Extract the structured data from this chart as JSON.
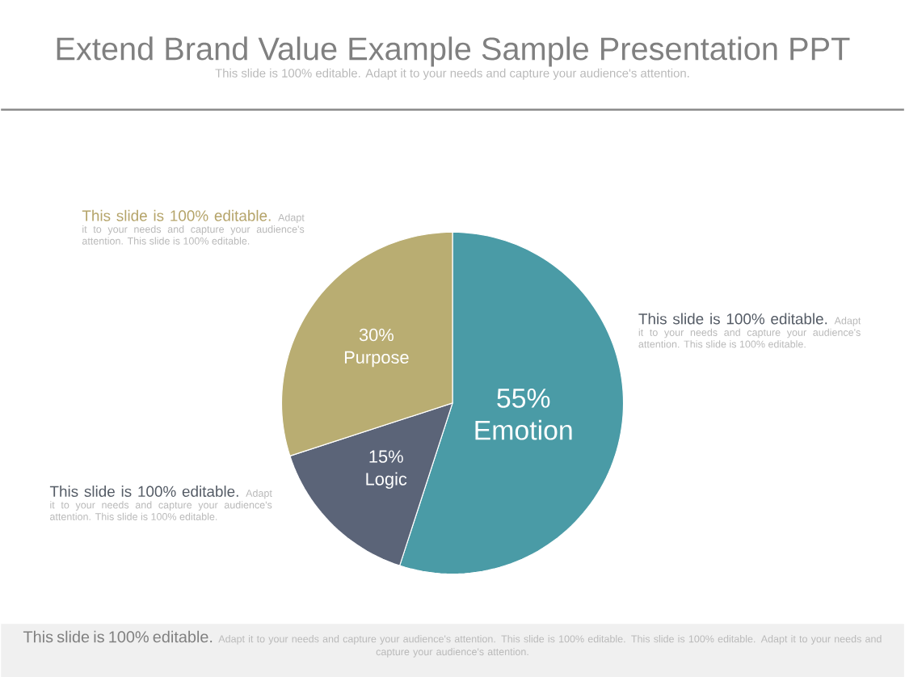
{
  "chart_data": {
    "type": "pie",
    "title": "Extend Brand Value Example Sample Presentation PPT",
    "subtitle": "This slide is 100% editable. Adapt it to your needs and capture your audience's attention.",
    "categories": [
      "Emotion",
      "Logic",
      "Purpose"
    ],
    "values": [
      55,
      15,
      30
    ],
    "value_labels": [
      "55%",
      "15%",
      "30%"
    ],
    "colors": [
      "#4a9ba6",
      "#5b6478",
      "#b9ad72"
    ],
    "annotations": [
      "This slide is 100% editable.",
      "Adapt it to your needs and capture your audience's attention. This slide is 100% editable.",
      "This slide is 100% editable.",
      "Adapt it to your needs and capture your audience's attention. This slide is 100% editable.",
      "This slide is 100% editable.",
      "Adapt it to your needs and capture your audience's attention. This slide is 100% editable.",
      "This slide is 100% editable.",
      "Adapt it to your needs and capture your audience's attention. This slide is 100% editable. This slide is 100% editable. Adapt it to your needs and capture your audience's attention."
    ]
  }
}
